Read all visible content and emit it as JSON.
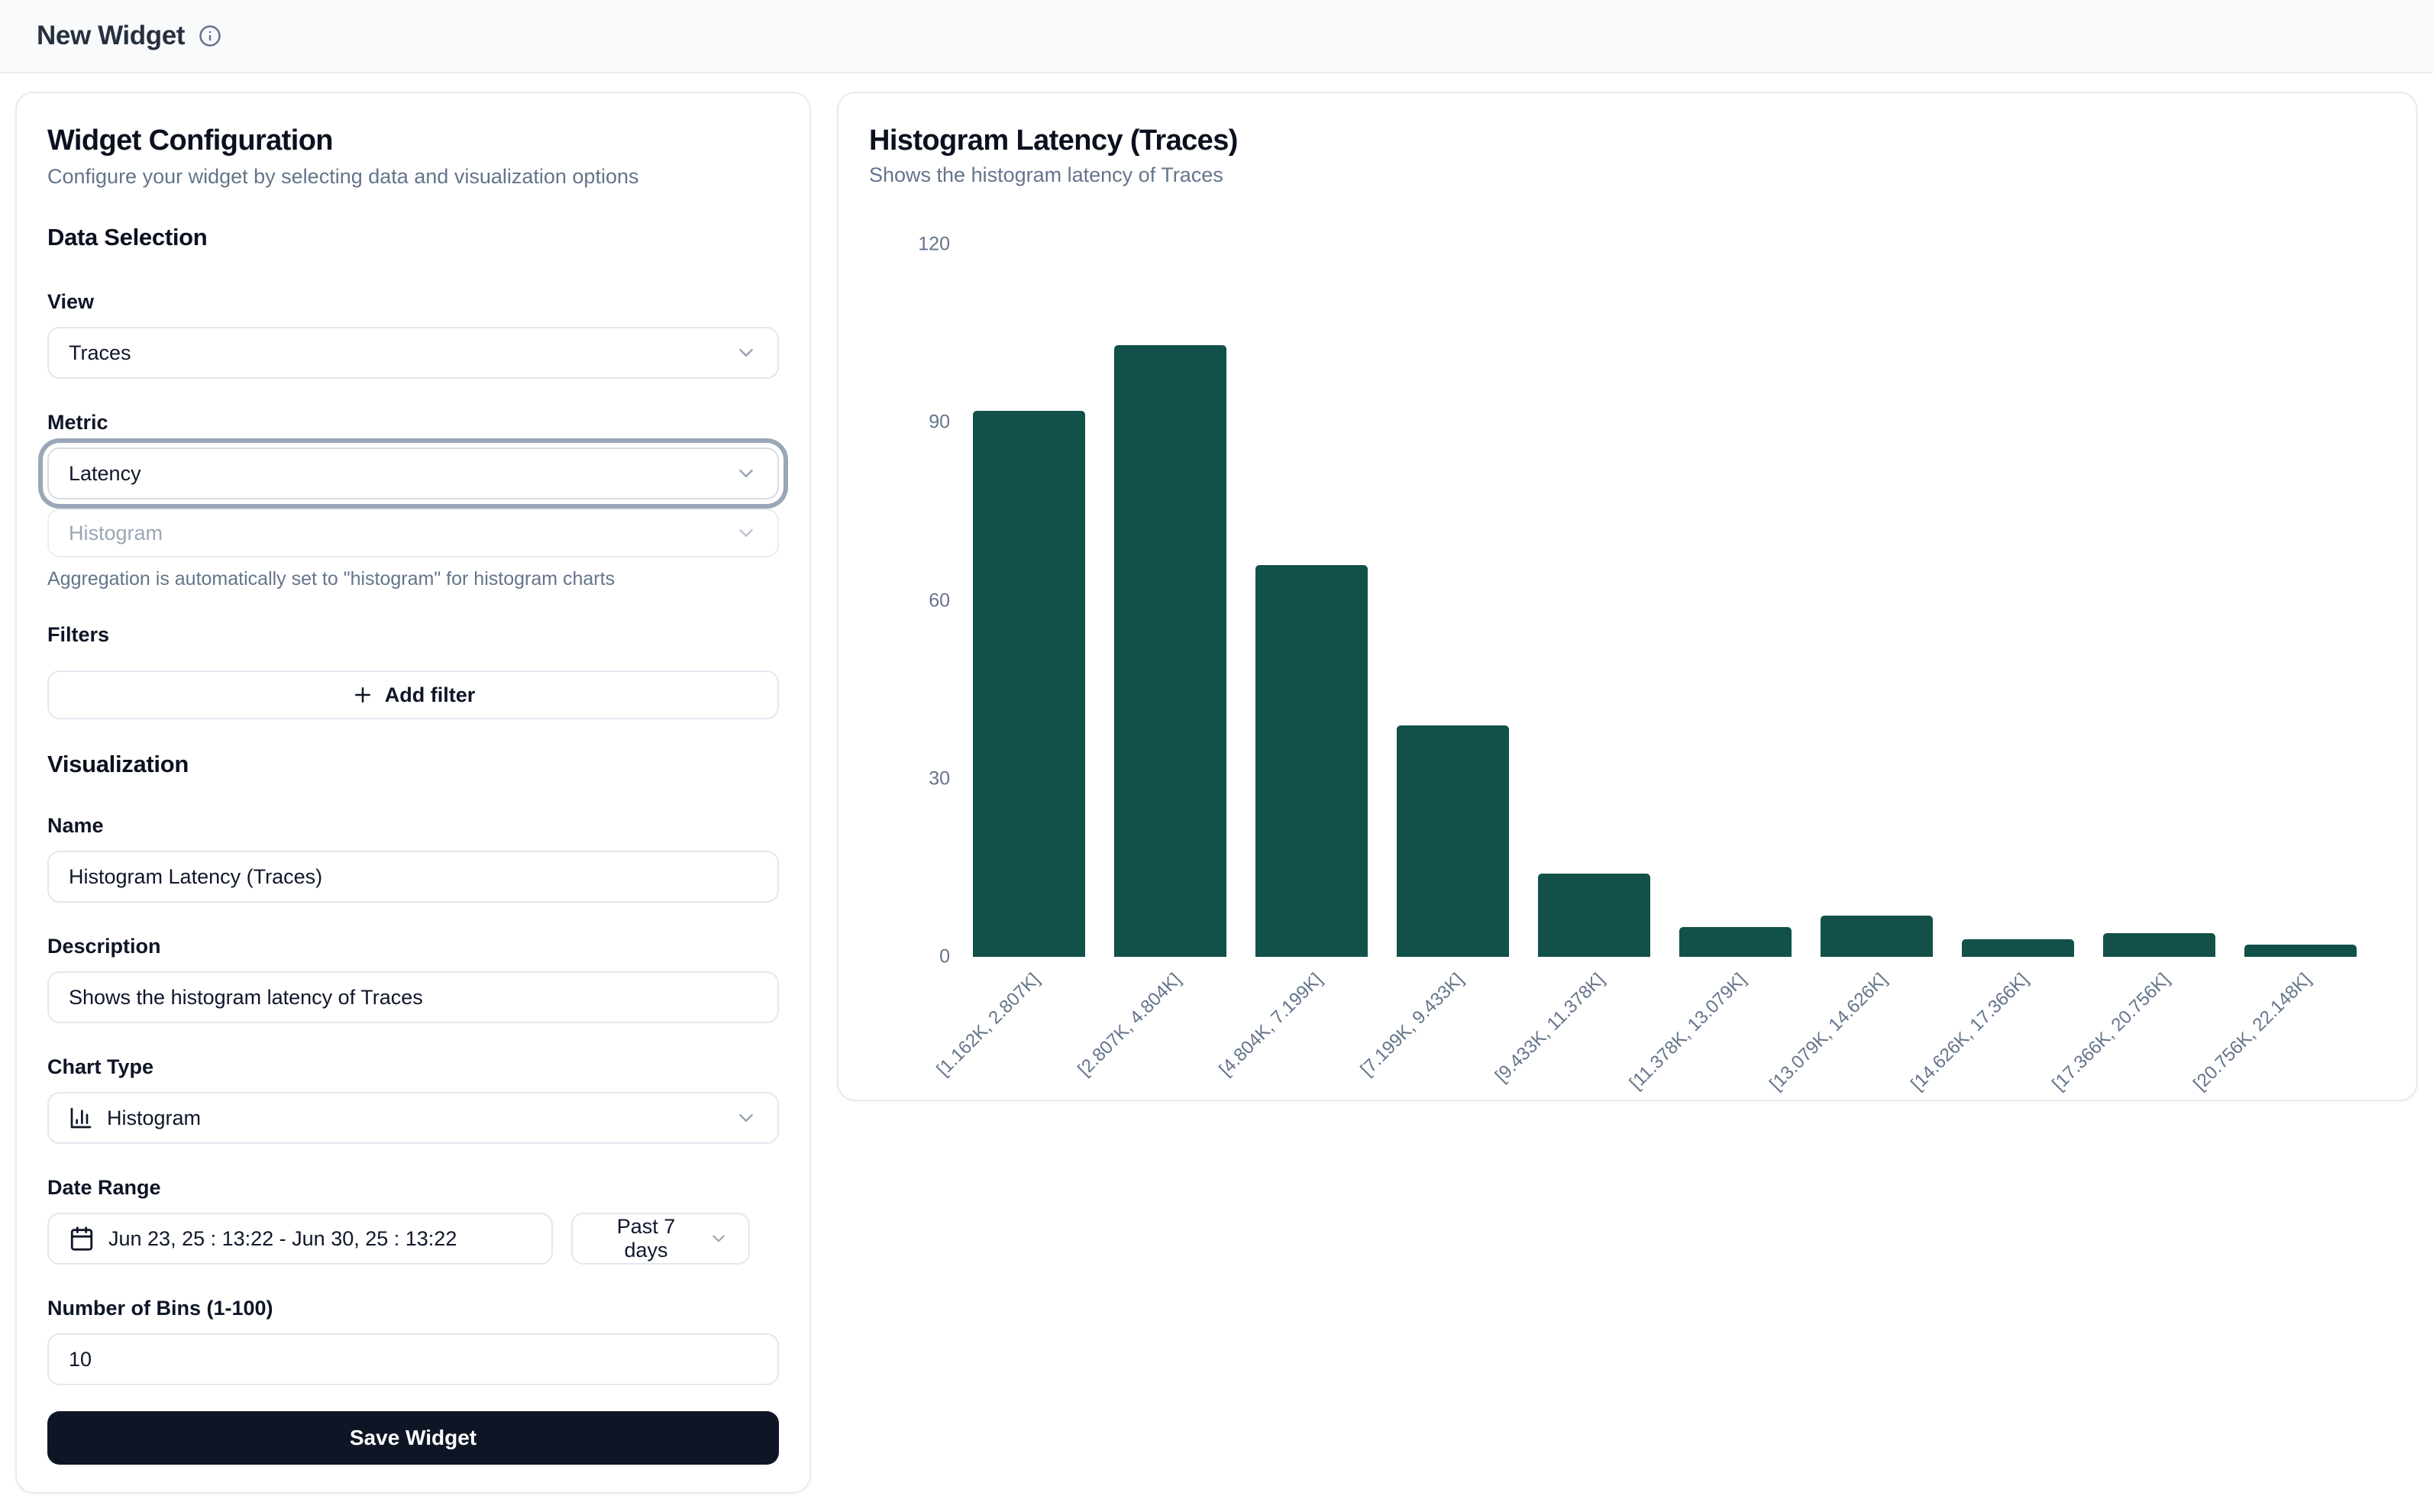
{
  "header": {
    "title": "New Widget"
  },
  "config_panel": {
    "title": "Widget Configuration",
    "subtitle": "Configure your widget by selecting data and visualization options",
    "data_selection": {
      "heading": "Data Selection",
      "view_label": "View",
      "view_value": "Traces",
      "metric_label": "Metric",
      "metric_value": "Latency",
      "aggregation_value": "Histogram",
      "aggregation_help": "Aggregation is automatically set to \"histogram\" for histogram charts",
      "filters_label": "Filters",
      "add_filter_label": "Add filter"
    },
    "visualization": {
      "heading": "Visualization",
      "name_label": "Name",
      "name_value": "Histogram Latency (Traces)",
      "description_label": "Description",
      "description_value": "Shows the histogram latency of Traces",
      "chart_type_label": "Chart Type",
      "chart_type_value": "Histogram",
      "date_range_label": "Date Range",
      "date_range_value": "Jun 23, 25 : 13:22 - Jun 30, 25 : 13:22",
      "date_preset_value": "Past 7 days",
      "bins_label": "Number of Bins (1-100)",
      "bins_value": "10"
    },
    "save_label": "Save Widget"
  },
  "preview_panel": {
    "title": "Histogram Latency (Traces)",
    "subtitle": "Shows the histogram latency of Traces"
  },
  "chart_data": {
    "type": "bar",
    "title": "Histogram Latency (Traces)",
    "categories": [
      "[1.162K, 2.807K]",
      "[2.807K, 4.804K]",
      "[4.804K, 7.199K]",
      "[7.199K, 9.433K]",
      "[9.433K, 11.378K]",
      "[11.378K, 13.079K]",
      "[13.079K, 14.626K]",
      "[14.626K, 17.366K]",
      "[17.366K, 20.756K]",
      "[20.756K, 22.148K]"
    ],
    "values": [
      92,
      103,
      66,
      39,
      14,
      5,
      7,
      3,
      4,
      2
    ],
    "xlabel": "",
    "ylabel": "",
    "ylim": [
      0,
      120
    ],
    "yticks": [
      0,
      30,
      60,
      90,
      120
    ],
    "grid": false,
    "legend": "none",
    "bar_color": "#12504a",
    "x_label_rotation": -45
  },
  "colors": {
    "bar": "#12504a",
    "save_button": "#0e1626",
    "card_border": "#e7ebf1",
    "muted_text": "#64748b",
    "header_bg": "#f8fafc"
  }
}
